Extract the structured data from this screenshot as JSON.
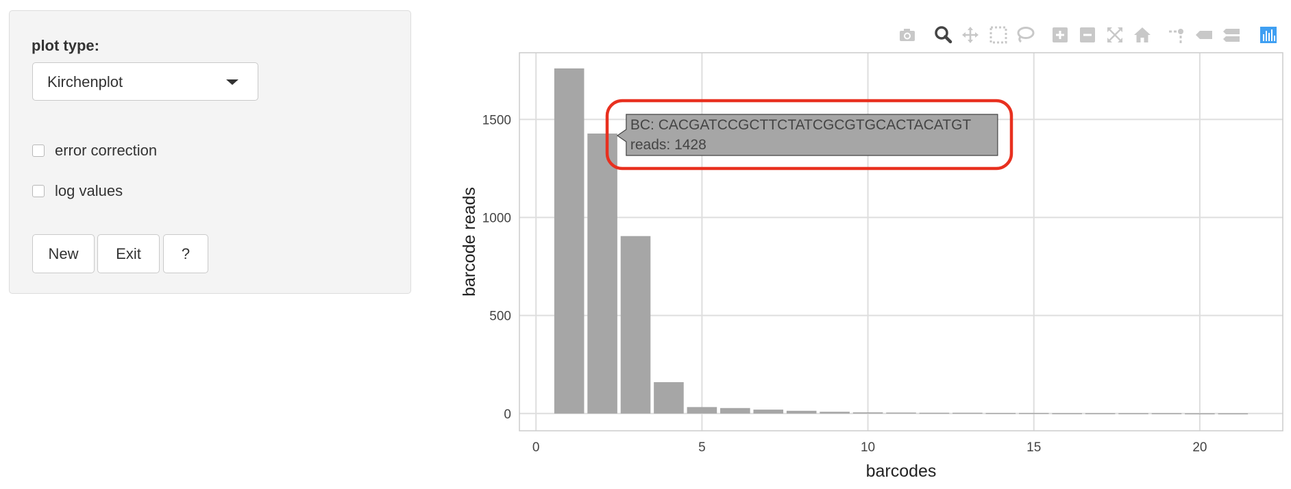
{
  "sidebar": {
    "title": "plot type:",
    "plot_type_value": "Kirchenplot",
    "checkboxes": [
      {
        "label": "error correction",
        "checked": false
      },
      {
        "label": "log values",
        "checked": false
      }
    ],
    "buttons": {
      "new": "New",
      "exit": "Exit",
      "help": "?"
    }
  },
  "modebar": {
    "icons": [
      "camera-icon",
      "zoom-icon",
      "pan-icon",
      "box-select-icon",
      "lasso-select-icon",
      "zoom-in-icon",
      "zoom-out-icon",
      "autoscale-icon",
      "reset-axes-icon",
      "spike-lines-icon",
      "hover-closest-icon",
      "hover-compare-icon",
      "plotly-logo-icon"
    ],
    "active_color": "#444444",
    "inactive_color": "#c8c8c8",
    "logo_color": "#3f9ff2"
  },
  "tooltip": {
    "line1": "BC: CACGATCCGCTTCTATCGCGTGCACTACATGT",
    "line2": "reads: 1428",
    "highlight_color": "#e8301f"
  },
  "chart_data": {
    "type": "bar",
    "x": [
      1,
      2,
      3,
      4,
      5,
      6,
      7,
      8,
      9,
      10,
      11,
      12,
      13,
      14,
      15,
      16,
      17,
      18,
      19,
      20,
      21
    ],
    "values": [
      1760,
      1428,
      905,
      160,
      33,
      28,
      20,
      14,
      9,
      6,
      5,
      4,
      4,
      3,
      3,
      2,
      2,
      2,
      2,
      1,
      1
    ],
    "xlabel": "barcodes",
    "ylabel": "barcode reads",
    "xlim": [
      -0.5,
      22.5
    ],
    "ylim": [
      -88,
      1840
    ],
    "xticks": [
      0,
      5,
      10,
      15,
      20
    ],
    "yticks": [
      0,
      500,
      1000,
      1500
    ],
    "grid": true,
    "bar_color": "#a6a6a6"
  }
}
